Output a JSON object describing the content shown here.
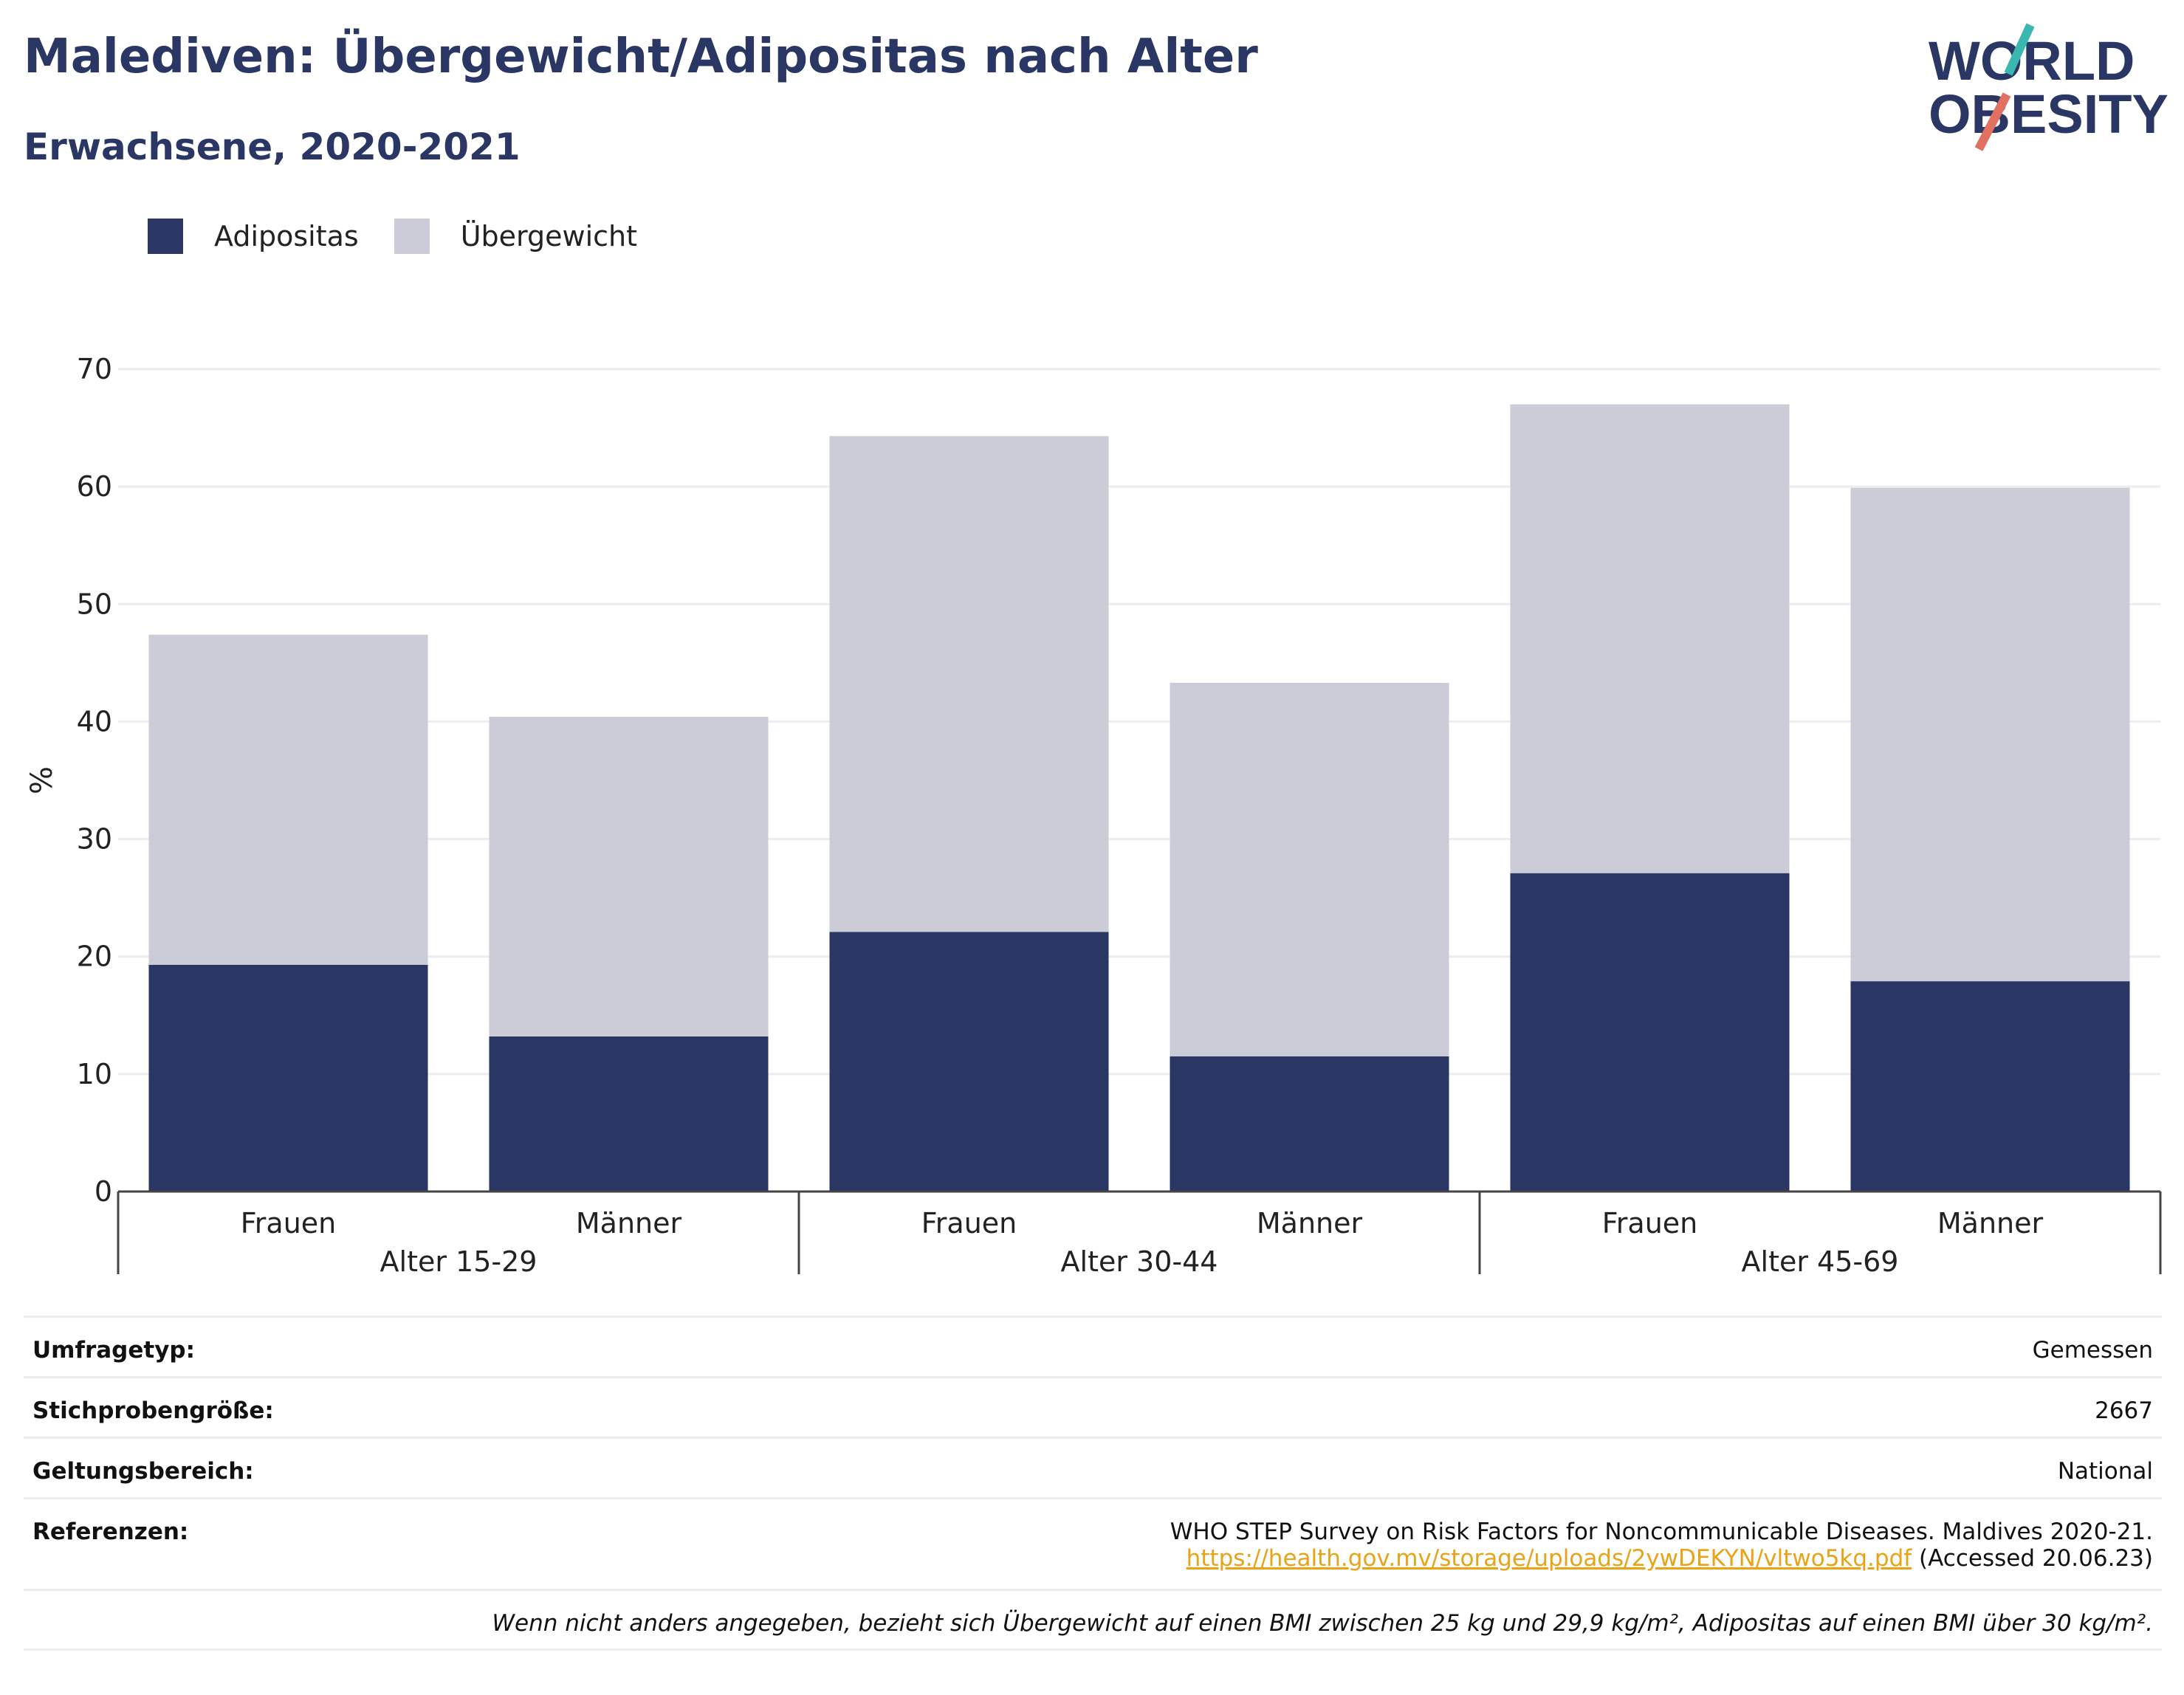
{
  "title": "Malediven: Übergewicht/Adipositas nach Alter",
  "subtitle": "Erwachsene, 2020-2021",
  "logo": {
    "line1": "WORLD",
    "line2": "OBESITY"
  },
  "legend": [
    {
      "label": "Adipositas",
      "color": "#2a3663"
    },
    {
      "label": "Übergewicht",
      "color": "#cbccd8"
    }
  ],
  "chart_data": {
    "type": "bar",
    "stacked": true,
    "categories": [
      "Frauen",
      "Männer",
      "Frauen",
      "Männer",
      "Frauen",
      "Männer"
    ],
    "groups": [
      {
        "label": "Alter 15-29",
        "members": [
          0,
          1
        ]
      },
      {
        "label": "Alter 30-44",
        "members": [
          2,
          3
        ]
      },
      {
        "label": "Alter 45-69",
        "members": [
          4,
          5
        ]
      }
    ],
    "series": [
      {
        "name": "Adipositas",
        "color": "#2a3663",
        "values": [
          19.3,
          13.2,
          22.1,
          11.5,
          27.1,
          17.9
        ]
      },
      {
        "name": "Übergewicht",
        "color": "#cbccd8",
        "values": [
          28.1,
          27.2,
          42.2,
          31.8,
          39.9,
          42.0
        ]
      }
    ],
    "ylabel": "%",
    "ylim": [
      0,
      70
    ],
    "yticks": [
      0,
      10,
      20,
      30,
      40,
      50,
      60,
      70
    ],
    "grid": true
  },
  "info": {
    "survey_type_label": "Umfragetyp:",
    "survey_type_value": "Gemessen",
    "sample_size_label": "Stichprobengröße:",
    "sample_size_value": "2667",
    "scope_label": "Geltungsbereich:",
    "scope_value": "National",
    "references_label": "Referenzen:",
    "reference_text": "WHO STEP Survey on Risk Factors for Noncommunicable Diseases. Maldives 2020-21.",
    "reference_url": "https://health.gov.mv/storage/uploads/2ywDEKYN/vltwo5kq.pdf",
    "reference_accessed": "(Accessed 20.06.23)",
    "footnote": "Wenn nicht anders angegeben, bezieht sich Übergewicht auf einen BMI zwischen 25 kg und 29,9 kg/m², Adipositas auf einen BMI über 30 kg/m²."
  }
}
